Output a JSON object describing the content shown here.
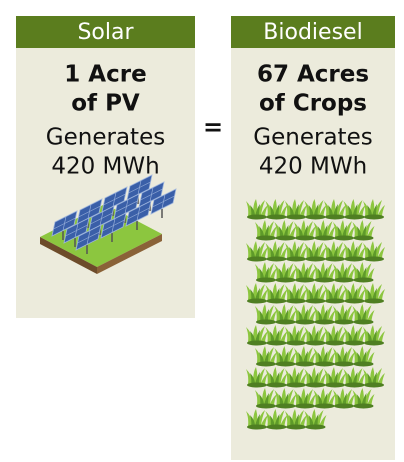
{
  "equals": "=",
  "panels": [
    {
      "header": "Solar",
      "lines": [
        "1 Acre",
        "of PV",
        "Generates",
        "420 MWh"
      ]
    },
    {
      "header": "Biodiesel",
      "lines": [
        "67 Acres",
        "of Crops",
        "Generates",
        "420 MWh"
      ]
    }
  ]
}
